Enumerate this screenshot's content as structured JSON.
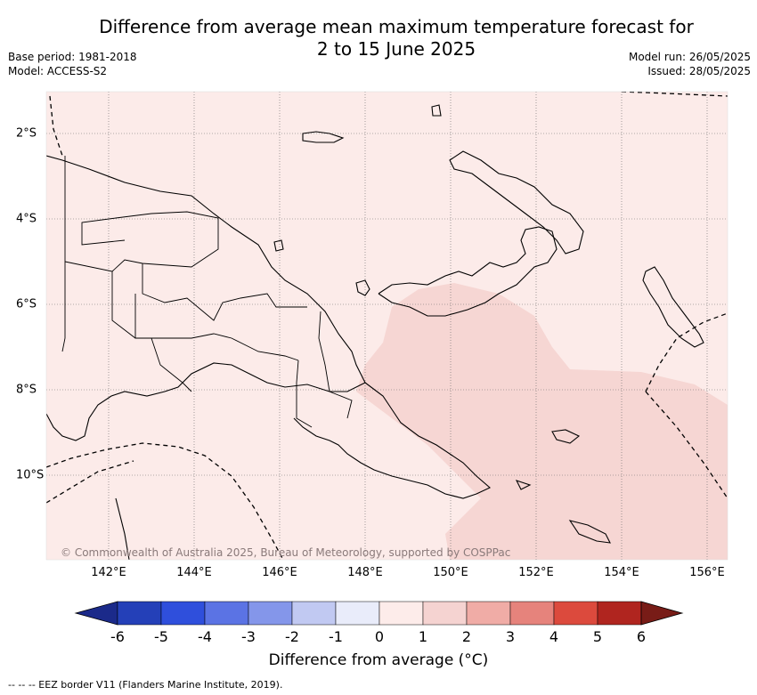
{
  "title_line1": "Difference from average mean maximum temperature forecast for",
  "title_line2": "2 to 15 June 2025",
  "base_period": "Base period: 1981-2018",
  "model": "Model: ACCESS-S2",
  "model_run": "Model run: 26/05/2025",
  "issued": "Issued: 28/05/2025",
  "credit": "© Commonwealth of Australia 2025, Bureau of Meteorology, supported by COSPPac",
  "lon_labels": [
    "142°E",
    "144°E",
    "146°E",
    "148°E",
    "150°E",
    "152°E",
    "154°E",
    "156°E"
  ],
  "lat_labels": [
    "2°S",
    "4°S",
    "6°S",
    "8°S",
    "10°S"
  ],
  "colorbar": {
    "title": "Difference from average (°C)",
    "ticks": [
      "-6",
      "-5",
      "-4",
      "-3",
      "-2",
      "-1",
      "0",
      "1",
      "2",
      "3",
      "4",
      "5",
      "6"
    ],
    "colors": [
      "#1b2a8a",
      "#2440b8",
      "#2f4fdc",
      "#5b73e4",
      "#8496ea",
      "#c1c9f2",
      "#e9ecfa",
      "#fdecea",
      "#f5d3d1",
      "#f0aca6",
      "#e6837c",
      "#dc4a3d",
      "#b0251f",
      "#781c17"
    ]
  },
  "legend_text": "--  --  -- EEZ border V11 (Flanders Marine Institute, 2019).",
  "map_colors": {
    "base_fill": "#fcebe9",
    "warm_fill": "#f6d6d3"
  }
}
